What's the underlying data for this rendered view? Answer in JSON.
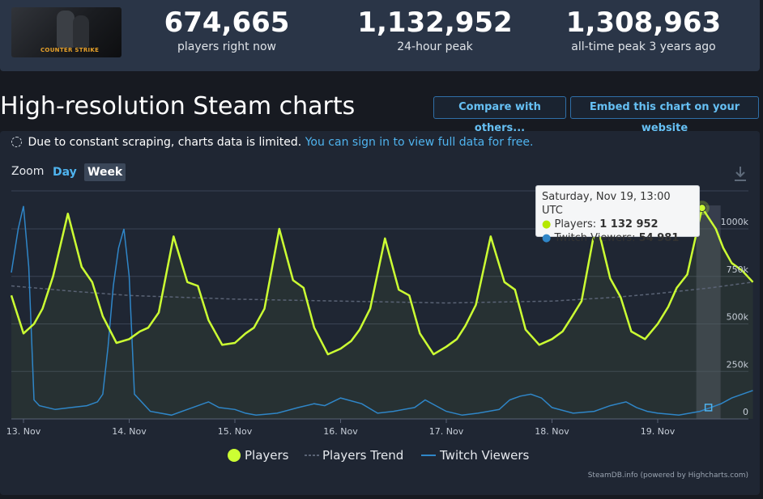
{
  "header": {
    "game_logo_text": "COUNTER STRIKE",
    "stats": [
      {
        "value": "674,665",
        "label": "players right now"
      },
      {
        "value": "1,132,952",
        "label": "24-hour peak"
      },
      {
        "value": "1,308,963",
        "label": "all-time peak 3 years ago"
      }
    ]
  },
  "section": {
    "title": "High-resolution Steam charts",
    "compare_label": "Compare with others...",
    "embed_label": "Embed this chart on your website"
  },
  "notice": {
    "text": "Due to constant scraping, charts data is limited.",
    "link": "You can sign in to view full data for free."
  },
  "zoom": {
    "label": "Zoom",
    "options": [
      "Day",
      "Week"
    ],
    "selected": "Week"
  },
  "chart_data": {
    "type": "line",
    "x_categories": [
      "13. Nov",
      "14. Nov",
      "15. Nov",
      "16. Nov",
      "17. Nov",
      "18. Nov",
      "19. Nov"
    ],
    "y_tick_labels": [
      "0",
      "250k",
      "500k",
      "750k",
      "1000k"
    ],
    "ylim": [
      0,
      1200000
    ],
    "grid": true,
    "legend": {
      "position": "bottom-center",
      "items": [
        "Players",
        "Players Trend",
        "Twitch Viewers"
      ]
    },
    "colors": {
      "players": "#ccff33",
      "trend": "#5a6375",
      "twitch": "#2f86c8"
    },
    "series": [
      {
        "name": "Players",
        "x": [
          -0.12,
          0.0,
          0.1,
          0.18,
          0.28,
          0.42,
          0.55,
          0.65,
          0.75,
          0.88,
          1.0,
          1.1,
          1.18,
          1.28,
          1.42,
          1.55,
          1.65,
          1.75,
          1.88,
          2.0,
          2.1,
          2.18,
          2.28,
          2.42,
          2.55,
          2.65,
          2.75,
          2.88,
          3.0,
          3.1,
          3.18,
          3.28,
          3.42,
          3.55,
          3.65,
          3.75,
          3.88,
          4.0,
          4.1,
          4.18,
          4.28,
          4.42,
          4.55,
          4.65,
          4.75,
          4.88,
          5.0,
          5.1,
          5.18,
          5.28,
          5.42,
          5.55,
          5.65,
          5.75,
          5.88,
          6.0,
          6.1,
          6.18,
          6.28,
          6.42,
          6.55,
          6.62,
          6.7,
          6.8,
          6.9
        ],
        "values": [
          650000,
          450000,
          500000,
          580000,
          750000,
          1080000,
          800000,
          720000,
          540000,
          400000,
          420000,
          460000,
          480000,
          560000,
          960000,
          720000,
          700000,
          520000,
          390000,
          400000,
          450000,
          480000,
          580000,
          1000000,
          730000,
          690000,
          480000,
          340000,
          370000,
          410000,
          470000,
          580000,
          950000,
          680000,
          650000,
          450000,
          340000,
          380000,
          420000,
          490000,
          600000,
          960000,
          720000,
          680000,
          470000,
          390000,
          420000,
          460000,
          530000,
          620000,
          1040000,
          740000,
          640000,
          460000,
          420000,
          500000,
          590000,
          690000,
          760000,
          1110000,
          1000000,
          900000,
          820000,
          780000,
          720000
        ]
      },
      {
        "name": "Players Trend",
        "x": [
          -0.12,
          0.5,
          1.0,
          2.0,
          3.0,
          4.0,
          5.0,
          5.6,
          6.0,
          6.5,
          6.9
        ],
        "values": [
          700000,
          670000,
          650000,
          630000,
          620000,
          610000,
          620000,
          640000,
          660000,
          690000,
          720000
        ]
      },
      {
        "name": "Twitch Viewers",
        "x": [
          -0.12,
          -0.05,
          0.0,
          0.05,
          0.1,
          0.15,
          0.3,
          0.45,
          0.6,
          0.7,
          0.75,
          0.8,
          0.85,
          0.9,
          0.95,
          1.0,
          1.05,
          1.2,
          1.4,
          1.6,
          1.75,
          1.85,
          2.0,
          2.1,
          2.2,
          2.3,
          2.4,
          2.6,
          2.75,
          2.85,
          3.0,
          3.2,
          3.35,
          3.5,
          3.7,
          3.8,
          3.9,
          4.0,
          4.15,
          4.3,
          4.5,
          4.6,
          4.7,
          4.8,
          4.9,
          5.0,
          5.2,
          5.4,
          5.55,
          5.7,
          5.8,
          5.9,
          6.0,
          6.2,
          6.4,
          6.5,
          6.6,
          6.7,
          6.8,
          6.9
        ],
        "values": [
          770000,
          1000000,
          1120000,
          800000,
          100000,
          70000,
          50000,
          60000,
          70000,
          90000,
          130000,
          380000,
          700000,
          900000,
          1000000,
          750000,
          130000,
          40000,
          20000,
          60000,
          90000,
          60000,
          50000,
          30000,
          20000,
          25000,
          30000,
          60000,
          80000,
          70000,
          110000,
          80000,
          30000,
          40000,
          60000,
          100000,
          70000,
          40000,
          20000,
          30000,
          50000,
          100000,
          120000,
          130000,
          110000,
          60000,
          30000,
          40000,
          70000,
          90000,
          60000,
          40000,
          30000,
          20000,
          40000,
          60000,
          80000,
          110000,
          130000,
          150000
        ]
      }
    ],
    "tooltip": {
      "title": "Saturday, Nov 19, 13:00 UTC",
      "players_label": "Players:",
      "players_value": "1 132 952",
      "twitch_label": "Twitch Viewers:",
      "twitch_value": "54 981"
    },
    "highlight_x": 6.48,
    "credit": "SteamDB.info (powered by Highcharts.com)"
  }
}
